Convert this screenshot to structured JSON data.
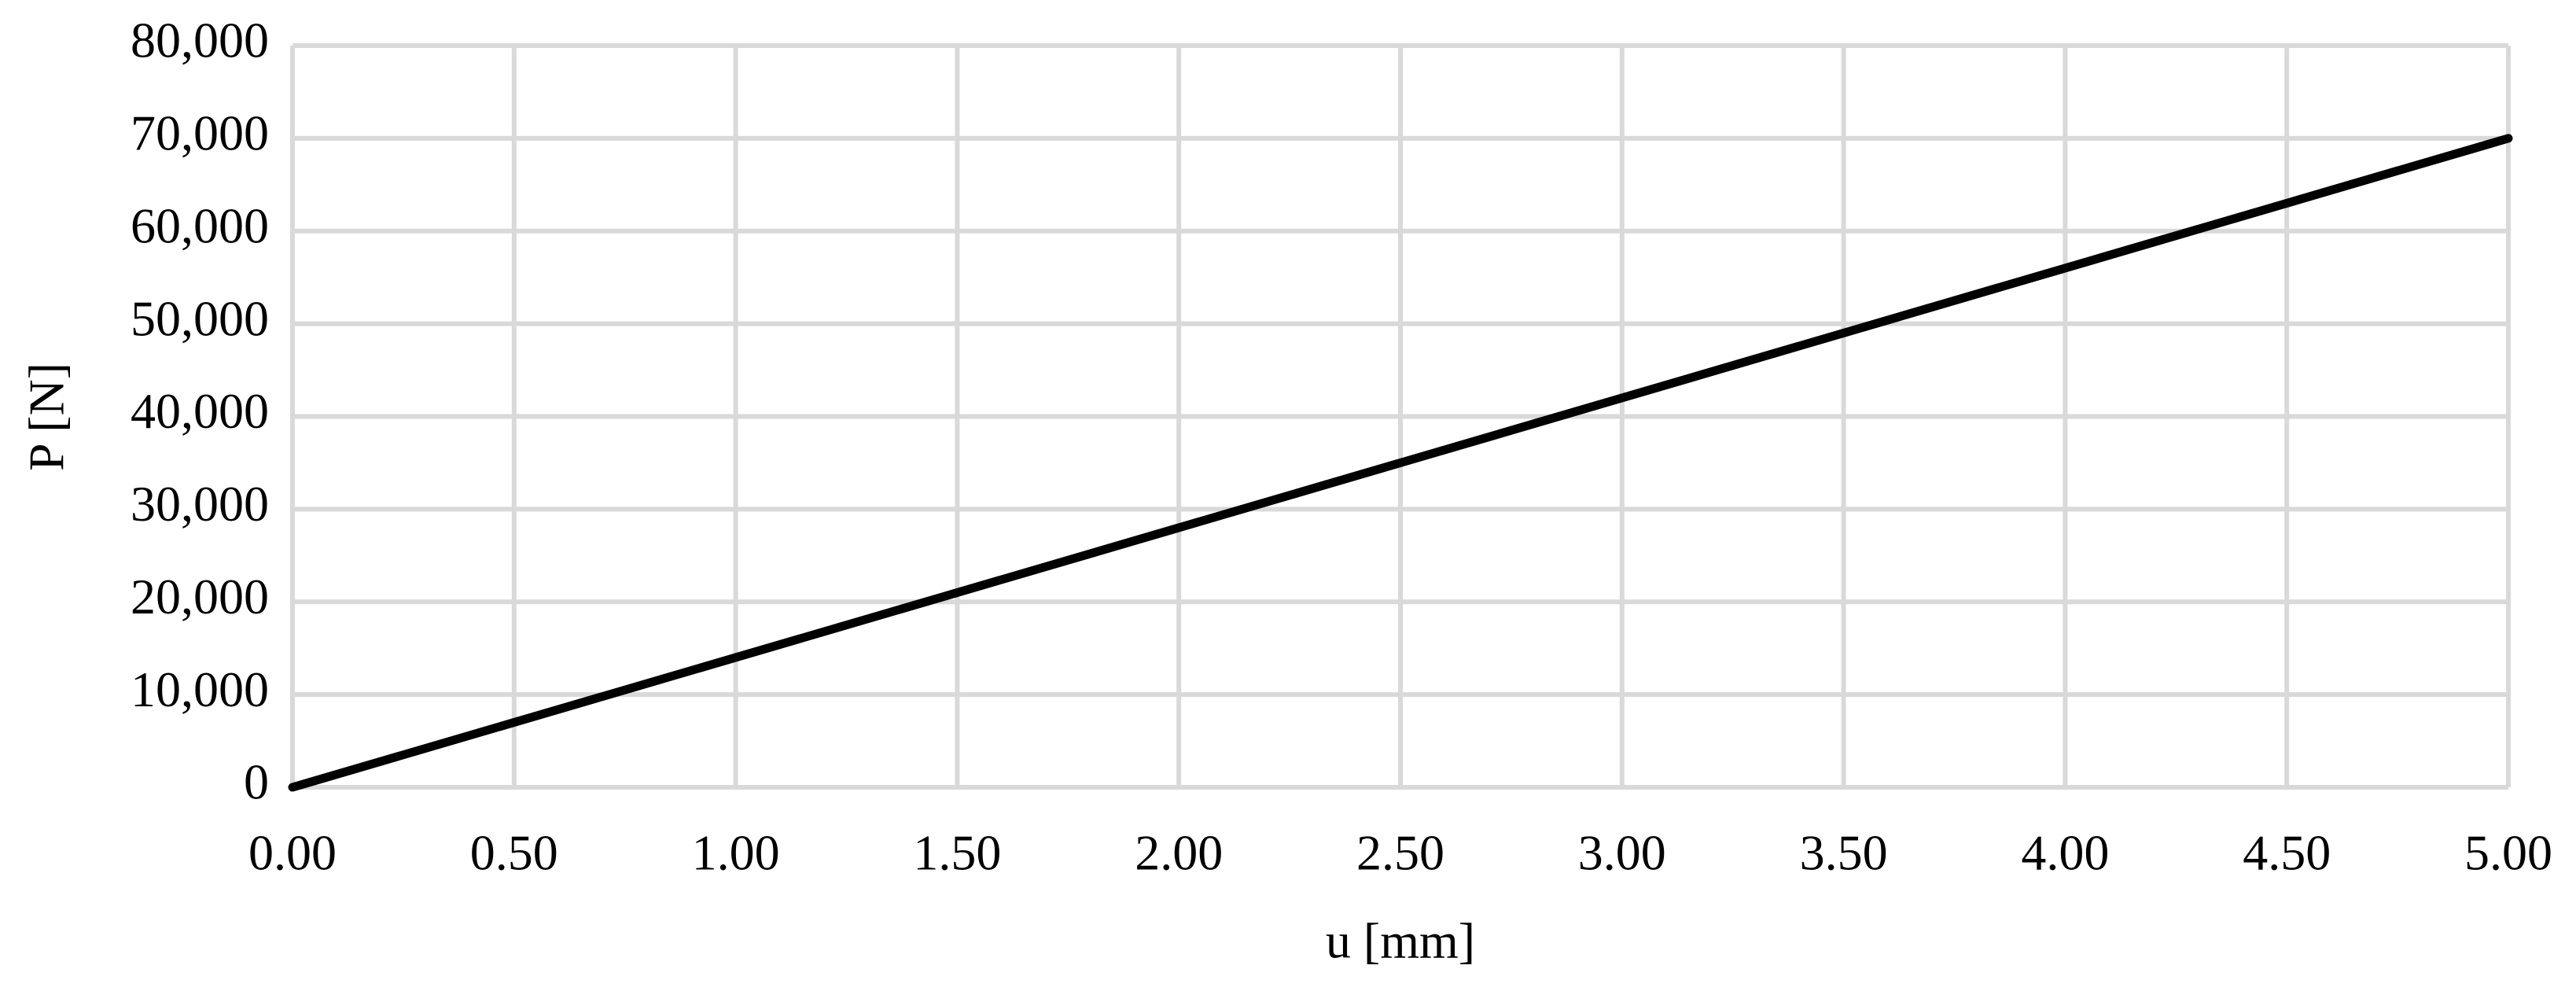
{
  "chart_data": {
    "type": "line",
    "x_label": "u [mm]",
    "y_label": "P [N]",
    "x": [
      0,
      5
    ],
    "series": [
      {
        "name": "P",
        "color": "#000000",
        "values": [
          0,
          70000
        ]
      }
    ],
    "xlim": [
      0,
      5
    ],
    "xticks": [
      {
        "value": 0,
        "label": "0.00"
      },
      {
        "value": 0.5,
        "label": "0.50"
      },
      {
        "value": 1,
        "label": "1.00"
      },
      {
        "value": 1.5,
        "label": "1.50"
      },
      {
        "value": 2,
        "label": "2.00"
      },
      {
        "value": 2.5,
        "label": "2.50"
      },
      {
        "value": 3,
        "label": "3.00"
      },
      {
        "value": 3.5,
        "label": "3.50"
      },
      {
        "value": 4,
        "label": "4.00"
      },
      {
        "value": 4.5,
        "label": "4.50"
      },
      {
        "value": 5,
        "label": "5.00"
      }
    ],
    "ylim": [
      0,
      80000
    ],
    "yticks": [
      0,
      {
        "value": 10000,
        "label": "10,000"
      },
      {
        "value": 20000,
        "label": "20,000"
      },
      {
        "value": 30000,
        "label": "30,000"
      },
      {
        "value": 40000,
        "label": "40,000"
      },
      {
        "value": 50000,
        "label": "50,000"
      },
      {
        "value": 60000,
        "label": "60,000"
      },
      {
        "value": 70000,
        "label": "70,000"
      },
      {
        "value": 80000,
        "label": "80,000"
      }
    ],
    "grid": true,
    "grid_color": "#d9d9d9"
  }
}
